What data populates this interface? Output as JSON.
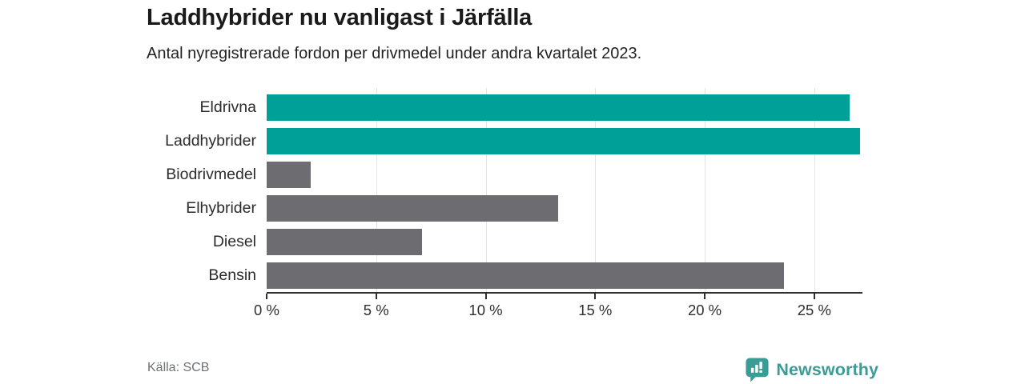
{
  "header": {
    "title": "Laddhybrider nu vanligast i Järfälla",
    "subtitle": "Antal nyregistrerade fordon per drivmedel under andra kvartalet 2023."
  },
  "chart_data": {
    "type": "bar",
    "orientation": "horizontal",
    "title": "Laddhybrider nu vanligast i Järfälla",
    "subtitle": "Antal nyregistrerade fordon per drivmedel under andra kvartalet 2023.",
    "categories": [
      "Eldrivna",
      "Laddhybrider",
      "Biodrivmedel",
      "Elhybrider",
      "Diesel",
      "Bensin"
    ],
    "values": [
      26.6,
      27.1,
      2.0,
      13.3,
      7.1,
      23.6
    ],
    "unit": "%",
    "bar_colors": [
      "#00a099",
      "#00a099",
      "#6c6c71",
      "#6c6c71",
      "#6c6c71",
      "#6c6c71"
    ],
    "xlabel": "",
    "ylabel": "",
    "xlim": [
      0,
      27.2
    ],
    "xticks": [
      0,
      5,
      10,
      15,
      20,
      25
    ],
    "xtick_labels": [
      "0 %",
      "5 %",
      "10 %",
      "15 %",
      "20 %",
      "25 %"
    ],
    "grid": "vertical-behind-bars",
    "legend": "none"
  },
  "footer": {
    "source": "Källa: SCB",
    "brand": "Newsworthy"
  },
  "colors": {
    "accent_teal": "#00a099",
    "neutral_gray": "#6c6c71",
    "axis": "#2f2f2f",
    "gridline": "#e3e3e3",
    "brand_teal": "#3a9c95",
    "source_text": "#6e7076"
  }
}
